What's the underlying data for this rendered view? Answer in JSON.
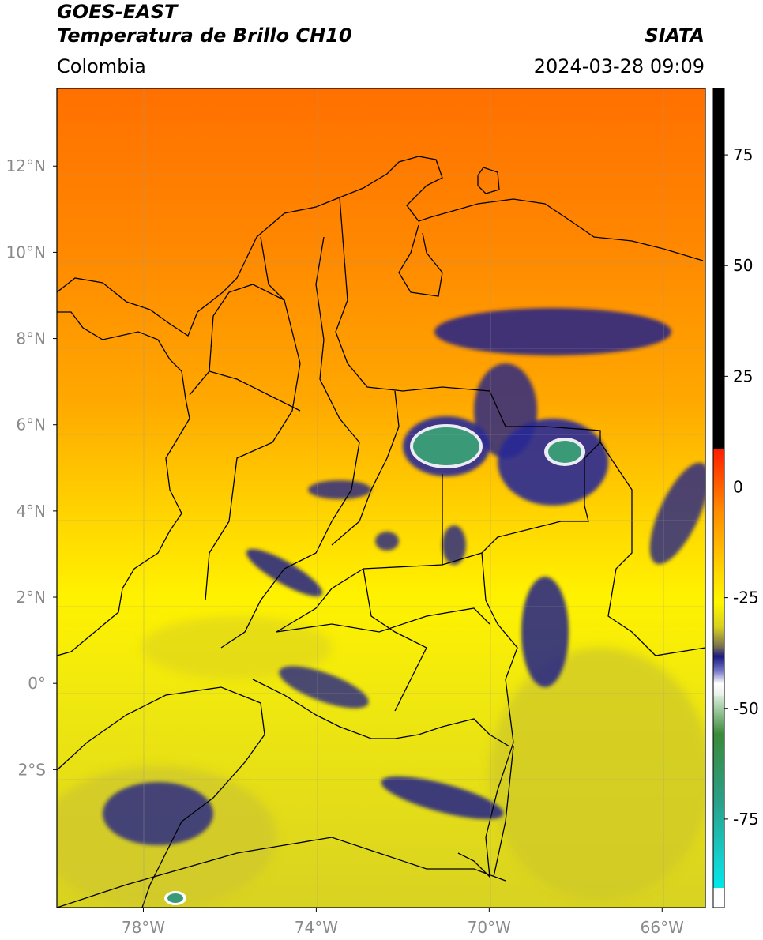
{
  "header": {
    "title_line1": "GOES-EAST",
    "title_line2": "Temperatura de Brillo CH10",
    "region": "Colombia",
    "brand": "SIATA",
    "timestamp": "2024-03-28 09:09"
  },
  "map": {
    "lon_ticks": [
      {
        "value": -78,
        "label": "78°W"
      },
      {
        "value": -74,
        "label": "74°W"
      },
      {
        "value": -70,
        "label": "70°W"
      },
      {
        "value": -66,
        "label": "66°W"
      }
    ],
    "lat_ticks": [
      {
        "value": 12,
        "label": "12°N"
      },
      {
        "value": 10,
        "label": "10°N"
      },
      {
        "value": 8,
        "label": "8°N"
      },
      {
        "value": 6,
        "label": "6°N"
      },
      {
        "value": 4,
        "label": "4°N"
      },
      {
        "value": 2,
        "label": "2°N"
      },
      {
        "value": 0,
        "label": "0°"
      },
      {
        "value": -2,
        "label": "2°S"
      }
    ],
    "extent": {
      "lon_min": -80,
      "lon_max": -65,
      "lat_min": -5.2,
      "lat_max": 13.8
    }
  },
  "colorbar": {
    "ticks": [
      {
        "value": 75,
        "label": "75"
      },
      {
        "value": 50,
        "label": "50"
      },
      {
        "value": 25,
        "label": "25"
      },
      {
        "value": 0,
        "label": "0"
      },
      {
        "value": -25,
        "label": "-25"
      },
      {
        "value": -50,
        "label": "-50"
      },
      {
        "value": -75,
        "label": "-75"
      }
    ],
    "range": [
      -95,
      90
    ]
  },
  "colors": {
    "warm_north": "#ff7a00",
    "mid_orange": "#ffa200",
    "yellow": "#fff200",
    "olive_yellow": "#dcd41e",
    "cold_blue": "#1c1c8c",
    "very_cold_green": "#2e9a72"
  }
}
